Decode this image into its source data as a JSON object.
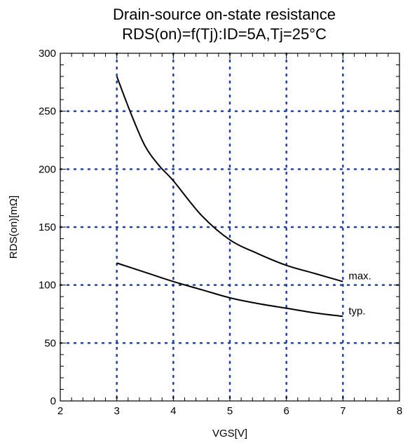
{
  "chart_data": {
    "type": "line",
    "title": "Drain-source on-state resistance",
    "subtitle": "RDS(on)=f(Tj):ID=5A,Tj=25°C",
    "xlabel": "VGS[V]",
    "ylabel": "RDS(on)[mΩ]",
    "xlim": [
      2,
      8
    ],
    "ylim": [
      0,
      300
    ],
    "x_ticks": [
      "2",
      "3",
      "4",
      "5",
      "6",
      "7",
      "8"
    ],
    "y_ticks": [
      "0",
      "50",
      "100",
      "150",
      "200",
      "250",
      "300"
    ],
    "grid": true,
    "series": [
      {
        "name": "max.",
        "color": "#000000",
        "x": [
          3.0,
          3.25,
          3.5,
          3.75,
          4.0,
          4.5,
          5.0,
          5.5,
          6.0,
          6.5,
          7.0
        ],
        "y": [
          280,
          248,
          220,
          203,
          190,
          160,
          139,
          127,
          117,
          110,
          103
        ]
      },
      {
        "name": "typ.",
        "color": "#000000",
        "x": [
          3.0,
          3.5,
          4.0,
          4.5,
          5.0,
          5.5,
          6.0,
          6.5,
          7.0
        ],
        "y": [
          119,
          111,
          103,
          96,
          89,
          84,
          80,
          76,
          73
        ]
      }
    ],
    "grid_color": "#1f3f9c"
  }
}
